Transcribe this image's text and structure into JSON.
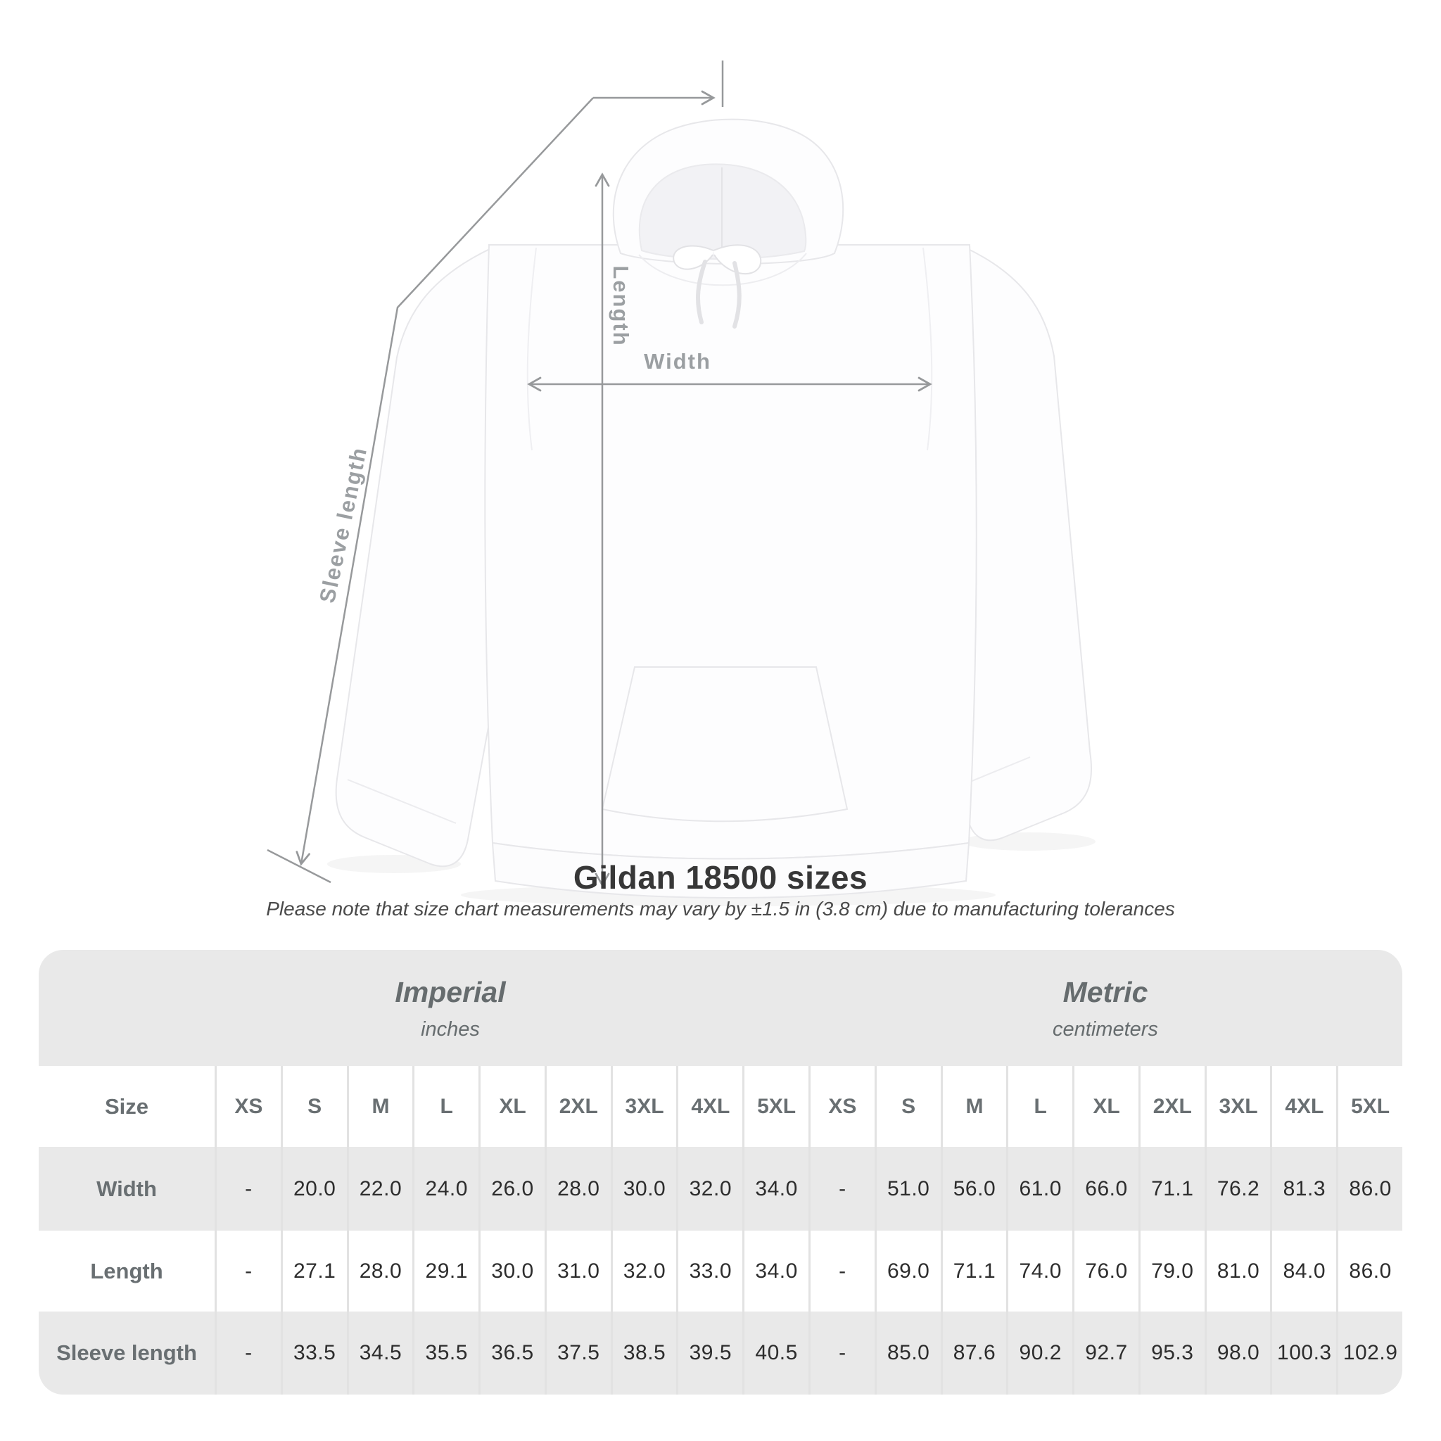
{
  "heading": {
    "title": "Gildan 18500 sizes",
    "subtitle": "Please note that size chart measurements may vary by ±1.5 in (3.8 cm) due to manufacturing tolerances"
  },
  "figure": {
    "description": "White hooded sweatshirt (front view) with measurement arrows",
    "measure_labels": {
      "length": "Length",
      "width": "Width",
      "sleeve": "Sleeve length"
    }
  },
  "table": {
    "size_header": "Size",
    "column_groups": [
      {
        "label": "Imperial",
        "unit": "inches"
      },
      {
        "label": "Metric",
        "unit": "centimeters"
      }
    ],
    "sizes": [
      "XS",
      "S",
      "M",
      "L",
      "XL",
      "2XL",
      "3XL",
      "4XL",
      "5XL"
    ],
    "rows": [
      {
        "label": "Width",
        "imperial": [
          "-",
          "20.0",
          "22.0",
          "24.0",
          "26.0",
          "28.0",
          "30.0",
          "32.0",
          "34.0"
        ],
        "metric": [
          "-",
          "51.0",
          "56.0",
          "61.0",
          "66.0",
          "71.1",
          "76.2",
          "81.3",
          "86.0"
        ]
      },
      {
        "label": "Length",
        "imperial": [
          "-",
          "27.1",
          "28.0",
          "29.1",
          "30.0",
          "31.0",
          "32.0",
          "33.0",
          "34.0"
        ],
        "metric": [
          "-",
          "69.0",
          "71.1",
          "74.0",
          "76.0",
          "79.0",
          "81.0",
          "84.0",
          "86.0"
        ]
      },
      {
        "label": "Sleeve length",
        "imperial": [
          "-",
          "33.5",
          "34.5",
          "35.5",
          "36.5",
          "37.5",
          "38.5",
          "39.5",
          "40.5"
        ],
        "metric": [
          "-",
          "85.0",
          "87.6",
          "90.2",
          "92.7",
          "95.3",
          "98.0",
          "100.3",
          "102.9"
        ]
      }
    ]
  },
  "colors": {
    "row_shade": "#e9e9e9",
    "separator": "#e2e2e2",
    "value_text": "#2d2d2d",
    "muted_text": "#696f72",
    "annotation": "#97999b",
    "title_text": "#373737"
  }
}
